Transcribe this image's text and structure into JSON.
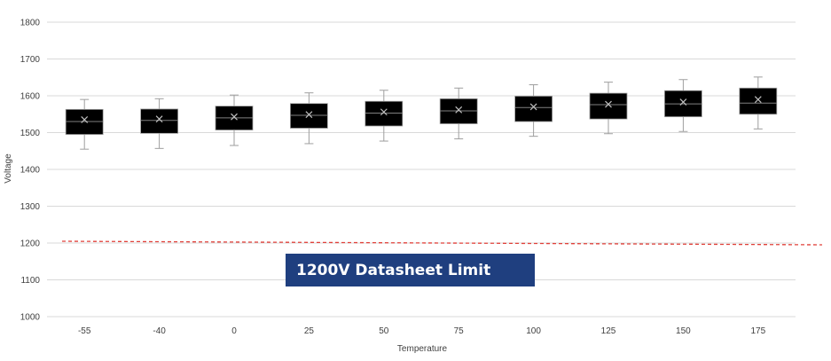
{
  "chart_data": {
    "type": "box",
    "title": "",
    "xlabel": "Temperature",
    "ylabel": "Voltage",
    "ylim": [
      1000,
      1800
    ],
    "ytick_step": 100,
    "yticks": [
      "1000",
      "1100",
      "1200",
      "1300",
      "1400",
      "1500",
      "1600",
      "1700",
      "1800"
    ],
    "grid": "horizontal",
    "categories": [
      "-55",
      "-40",
      "0",
      "25",
      "50",
      "75",
      "100",
      "125",
      "150",
      "175"
    ],
    "series": [
      {
        "boxes": [
          {
            "min": 1455,
            "q1": 1495,
            "median": 1530,
            "q3": 1563,
            "max": 1590,
            "mean": 1535
          },
          {
            "min": 1457,
            "q1": 1498,
            "median": 1533,
            "q3": 1564,
            "max": 1592,
            "mean": 1537
          },
          {
            "min": 1465,
            "q1": 1507,
            "median": 1540,
            "q3": 1572,
            "max": 1602,
            "mean": 1543
          },
          {
            "min": 1470,
            "q1": 1512,
            "median": 1547,
            "q3": 1579,
            "max": 1608,
            "mean": 1549
          },
          {
            "min": 1477,
            "q1": 1518,
            "median": 1553,
            "q3": 1585,
            "max": 1615,
            "mean": 1556
          },
          {
            "min": 1483,
            "q1": 1524,
            "median": 1559,
            "q3": 1592,
            "max": 1621,
            "mean": 1562
          },
          {
            "min": 1490,
            "q1": 1530,
            "median": 1568,
            "q3": 1599,
            "max": 1630,
            "mean": 1570
          },
          {
            "min": 1497,
            "q1": 1537,
            "median": 1576,
            "q3": 1607,
            "max": 1637,
            "mean": 1577
          },
          {
            "min": 1503,
            "q1": 1543,
            "median": 1578,
            "q3": 1614,
            "max": 1644,
            "mean": 1583
          },
          {
            "min": 1510,
            "q1": 1550,
            "median": 1580,
            "q3": 1621,
            "max": 1651,
            "mean": 1590
          }
        ]
      }
    ],
    "limit_line": {
      "value": 1200,
      "label": "1200V Datasheet Limit",
      "color": "#e0413a"
    },
    "colors": {
      "box_fill": "#000000",
      "whisker": "#9e9e9e",
      "median": "#7f7f7f",
      "mean_marker": "#bfbfbf",
      "grid": "#d9d9d9",
      "label_box": "#1f3f7f"
    }
  }
}
